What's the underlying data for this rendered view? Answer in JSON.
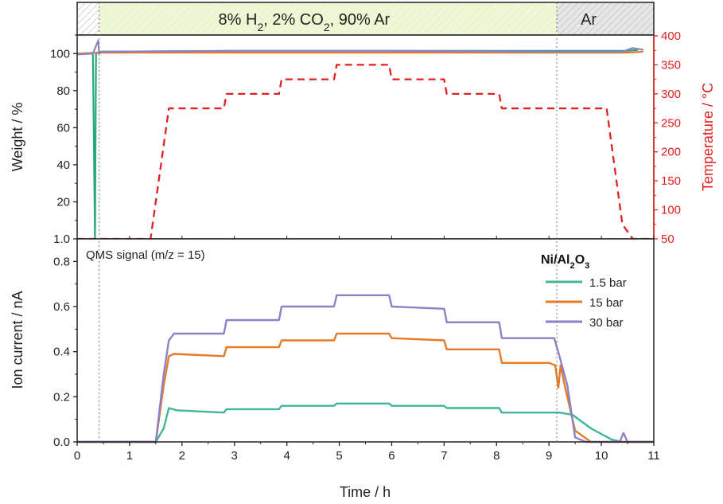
{
  "chart_data": [
    {
      "type": "line",
      "panel": "top",
      "xlabel": "Time / h",
      "ylabel": "Weight / %",
      "ylabel_right": "Temperature / °C",
      "xlim": [
        0,
        11
      ],
      "ylim": [
        1.0,
        110
      ],
      "ylim_right": [
        50,
        400
      ],
      "x_ticks": [
        "0",
        "1",
        "2",
        "3",
        "4",
        "5",
        "6",
        "7",
        "8",
        "9",
        "10",
        "11"
      ],
      "y_ticks": [
        "1.0",
        "20",
        "40",
        "60",
        "80",
        "100"
      ],
      "y_ticks_right": [
        "50",
        "100",
        "150",
        "200",
        "250",
        "300",
        "350",
        "400"
      ],
      "atmosphere_bands": [
        {
          "label_parts": [
            [
              "8% H",
              ""
            ],
            [
              "2",
              "sub"
            ],
            [
              ", 2% CO",
              ""
            ],
            [
              "2",
              "sub"
            ],
            [
              ", 90% Ar",
              ""
            ]
          ],
          "x_start": 0.42,
          "x_end": 9.15,
          "color": "#eef8d6"
        },
        {
          "label_parts": [
            [
              "Ar",
              ""
            ]
          ],
          "x_start": 9.15,
          "x_end": 11,
          "color": "#e6e6e6"
        }
      ],
      "series": [
        {
          "axis": "left",
          "color": "#26a77d",
          "points": [
            [
              0,
              100
            ],
            [
              0.3,
              100
            ],
            [
              0.34,
              1
            ],
            [
              0.36,
              100
            ],
            [
              0.45,
              101
            ],
            [
              3,
              101.5
            ],
            [
              6,
              101.5
            ],
            [
              9,
              101.5
            ],
            [
              10.5,
              101.5
            ],
            [
              10.7,
              102
            ]
          ]
        },
        {
          "axis": "left",
          "color": "#e57a27",
          "points": [
            [
              0,
              100
            ],
            [
              0.38,
              100.5
            ],
            [
              3,
              100.5
            ],
            [
              6,
              100.5
            ],
            [
              9,
              100.5
            ],
            [
              10.5,
              100.5
            ],
            [
              10.8,
              101
            ]
          ]
        },
        {
          "axis": "left",
          "color": "#8b82c8",
          "points": [
            [
              0,
              99.5
            ],
            [
              0.3,
              100
            ],
            [
              0.4,
              107
            ],
            [
              0.42,
              100
            ],
            [
              0.5,
              101
            ],
            [
              3,
              101.5
            ],
            [
              6,
              101.5
            ],
            [
              9,
              101
            ],
            [
              10.4,
              101
            ],
            [
              10.6,
              103
            ],
            [
              10.8,
              102
            ]
          ]
        },
        {
          "axis": "right",
          "color": "#e0211f",
          "dashed": true,
          "points": [
            [
              0,
              50
            ],
            [
              1.4,
              50
            ],
            [
              1.75,
              275
            ],
            [
              2.8,
              275
            ],
            [
              2.85,
              300
            ],
            [
              3.85,
              300
            ],
            [
              3.9,
              325
            ],
            [
              4.9,
              325
            ],
            [
              4.95,
              350
            ],
            [
              5.95,
              350
            ],
            [
              6,
              325
            ],
            [
              7,
              325
            ],
            [
              7.05,
              300
            ],
            [
              8.05,
              300
            ],
            [
              8.1,
              275
            ],
            [
              10.1,
              275
            ],
            [
              10.4,
              75
            ],
            [
              10.6,
              50
            ],
            [
              11,
              50
            ]
          ]
        }
      ]
    },
    {
      "type": "line",
      "panel": "bottom",
      "annotation": "QMS signal (m/z = 15)",
      "xlabel": "Time / h",
      "ylabel": "Ion current / nA",
      "xlim": [
        0,
        11
      ],
      "ylim": [
        0,
        0.9
      ],
      "x_ticks": [
        "0",
        "1",
        "2",
        "3",
        "4",
        "5",
        "6",
        "7",
        "8",
        "9",
        "10",
        "11"
      ],
      "y_ticks": [
        "0.0",
        "0.2",
        "0.4",
        "0.6",
        "0.8"
      ],
      "legend_title_parts": [
        [
          "Ni/Al",
          ""
        ],
        [
          "2",
          "sub"
        ],
        [
          "O",
          ""
        ],
        [
          "3",
          "sub"
        ]
      ],
      "legend_position": "top-right",
      "series": [
        {
          "name": "1.5 bar",
          "color": "#3fb696",
          "points": [
            [
              0,
              0
            ],
            [
              1.5,
              0
            ],
            [
              1.65,
              0.06
            ],
            [
              1.75,
              0.15
            ],
            [
              1.9,
              0.14
            ],
            [
              2.8,
              0.13
            ],
            [
              2.85,
              0.145
            ],
            [
              3.85,
              0.145
            ],
            [
              3.9,
              0.16
            ],
            [
              4.9,
              0.16
            ],
            [
              4.95,
              0.17
            ],
            [
              5.95,
              0.17
            ],
            [
              6,
              0.16
            ],
            [
              7,
              0.16
            ],
            [
              7.05,
              0.15
            ],
            [
              8.05,
              0.15
            ],
            [
              8.1,
              0.13
            ],
            [
              9.2,
              0.13
            ],
            [
              9.45,
              0.12
            ],
            [
              9.8,
              0.06
            ],
            [
              10.2,
              0.01
            ],
            [
              10.4,
              0
            ],
            [
              11,
              0
            ]
          ]
        },
        {
          "name": "15 bar",
          "color": "#e57a27",
          "points": [
            [
              0,
              0
            ],
            [
              1.5,
              0
            ],
            [
              1.65,
              0.25
            ],
            [
              1.75,
              0.38
            ],
            [
              1.85,
              0.39
            ],
            [
              2.8,
              0.38
            ],
            [
              2.85,
              0.42
            ],
            [
              3.85,
              0.42
            ],
            [
              3.9,
              0.45
            ],
            [
              4.9,
              0.45
            ],
            [
              4.95,
              0.48
            ],
            [
              5.95,
              0.48
            ],
            [
              6,
              0.46
            ],
            [
              7,
              0.45
            ],
            [
              7.05,
              0.41
            ],
            [
              8.05,
              0.41
            ],
            [
              8.1,
              0.35
            ],
            [
              9.0,
              0.35
            ],
            [
              9.12,
              0.34
            ],
            [
              9.18,
              0.24
            ],
            [
              9.22,
              0.34
            ],
            [
              9.3,
              0.25
            ],
            [
              9.5,
              0.05
            ],
            [
              9.8,
              0
            ],
            [
              11,
              0
            ]
          ]
        },
        {
          "name": "30 bar",
          "color": "#8b82c8",
          "points": [
            [
              0,
              0
            ],
            [
              1.5,
              0
            ],
            [
              1.65,
              0.3
            ],
            [
              1.75,
              0.45
            ],
            [
              1.85,
              0.48
            ],
            [
              2.8,
              0.48
            ],
            [
              2.85,
              0.54
            ],
            [
              3.85,
              0.54
            ],
            [
              3.9,
              0.6
            ],
            [
              4.9,
              0.6
            ],
            [
              4.95,
              0.65
            ],
            [
              5.95,
              0.65
            ],
            [
              6,
              0.6
            ],
            [
              7,
              0.59
            ],
            [
              7.05,
              0.53
            ],
            [
              8.05,
              0.53
            ],
            [
              8.1,
              0.46
            ],
            [
              9.1,
              0.46
            ],
            [
              9.2,
              0.38
            ],
            [
              9.35,
              0.25
            ],
            [
              9.5,
              0.02
            ],
            [
              9.7,
              0
            ],
            [
              10.35,
              0
            ],
            [
              10.42,
              0.04
            ],
            [
              10.5,
              0
            ],
            [
              11,
              0
            ]
          ]
        }
      ]
    }
  ]
}
